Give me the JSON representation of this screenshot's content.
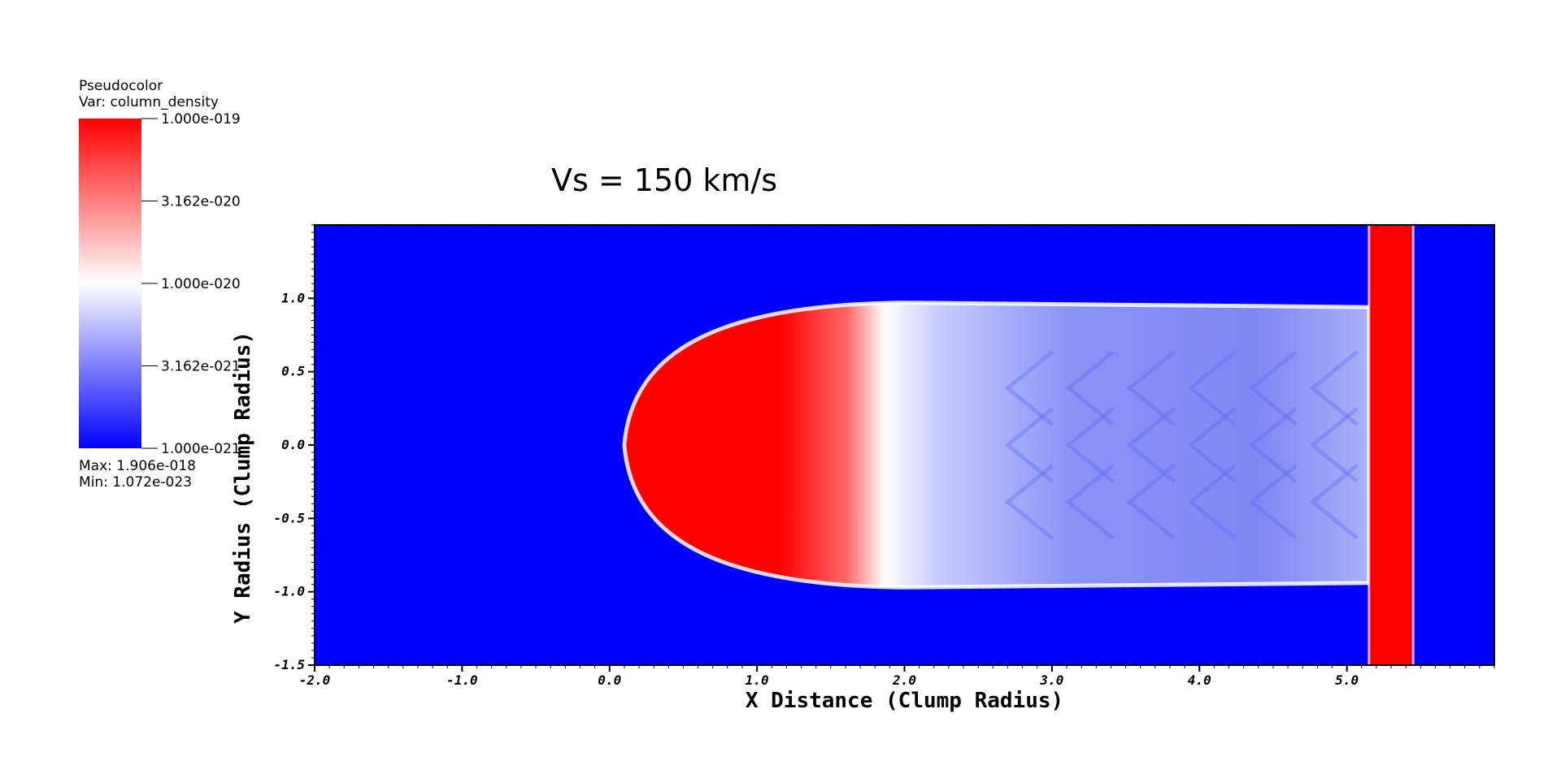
{
  "chart_data": {
    "type": "heatmap",
    "title": "Vs = 150 km/s",
    "xlabel": "X Distance (Clump Radius)",
    "ylabel": "Y Radius (Clump Radius)",
    "xlim": [
      -2.0,
      6.0
    ],
    "ylim": [
      -1.5,
      1.5
    ],
    "x_ticks": [
      -2.0,
      -1.0,
      0.0,
      1.0,
      2.0,
      3.0,
      4.0,
      5.0
    ],
    "x_tick_labels": [
      "-2.0",
      "-1.0",
      "0.0",
      "1.0",
      "2.0",
      "3.0",
      "4.0",
      "5.0"
    ],
    "y_ticks": [
      -1.5,
      -1.0,
      -0.5,
      0.0,
      0.5,
      1.0
    ],
    "y_tick_labels": [
      "-1.5",
      "-1.0",
      "-0.5",
      "0.0",
      "0.5",
      "1.0"
    ],
    "field": {
      "background": "#0000ff",
      "clump": {
        "head_x": 0.1,
        "body_end_x": 5.15,
        "half_width": 0.97,
        "red_until_x": 2.2
      },
      "shock_front": {
        "x0": 5.15,
        "x1": 5.45
      }
    },
    "legend": {
      "plot_type": "Pseudocolor",
      "variable": "Var: column_density",
      "scale": "log",
      "ticks": [
        {
          "value": 1e-19,
          "label": "1.000e-019"
        },
        {
          "value": 3.162e-20,
          "label": "3.162e-020"
        },
        {
          "value": 1e-20,
          "label": "1.000e-020"
        },
        {
          "value": 3.162e-21,
          "label": "3.162e-021"
        },
        {
          "value": 1e-21,
          "label": "1.000e-021"
        }
      ],
      "colors": [
        "#ff0000",
        "#ffffff",
        "#0000ff"
      ],
      "max_label": "Max:  1.906e-018",
      "min_label": "Min:  1.072e-023"
    }
  }
}
